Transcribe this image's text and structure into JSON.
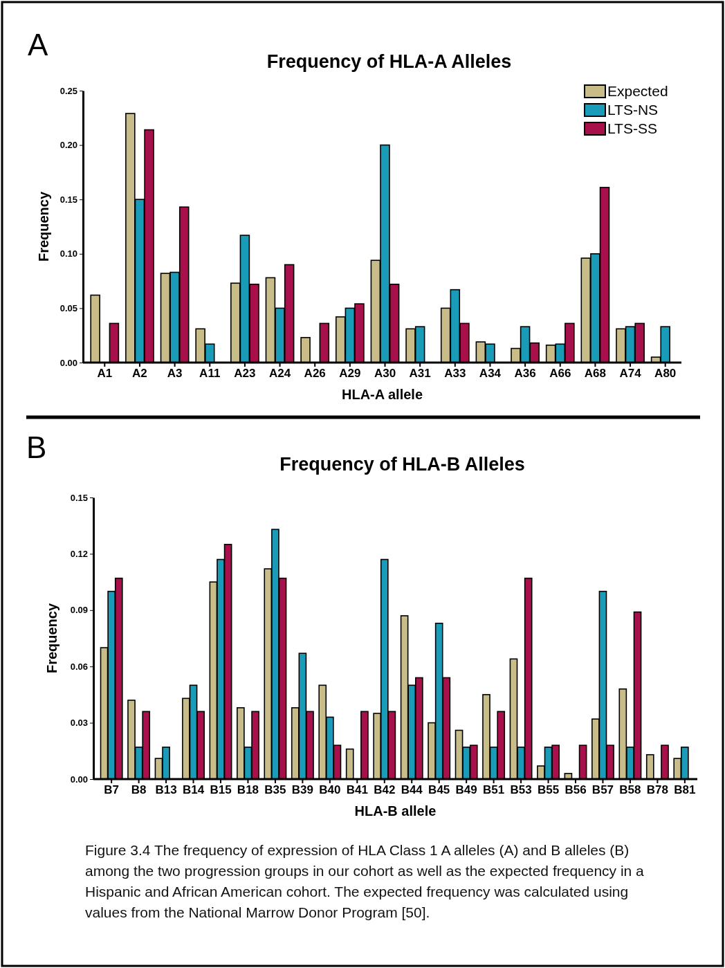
{
  "chart_data": [
    {
      "type": "bar",
      "title": "Frequency of HLA-A Alleles",
      "xlabel": "HLA-A allele",
      "ylabel": "Frequency",
      "categories": [
        "A1",
        "A2",
        "A3",
        "A11",
        "A23",
        "A24",
        "A26",
        "A29",
        "A30",
        "A31",
        "A33",
        "A34",
        "A36",
        "A66",
        "A68",
        "A74",
        "A80"
      ],
      "series": [
        {
          "name": "Expected",
          "color": "#c8bc88",
          "values": [
            0.062,
            0.229,
            0.082,
            0.031,
            0.073,
            0.078,
            0.023,
            0.042,
            0.094,
            0.031,
            0.05,
            0.019,
            0.013,
            0.016,
            0.096,
            0.031,
            0.005
          ]
        },
        {
          "name": "LTS-NS",
          "color": "#1a9cb8",
          "values": [
            0,
            0.15,
            0.083,
            0.017,
            0.117,
            0.05,
            0,
            0.05,
            0.2,
            0.033,
            0.067,
            0.017,
            0.033,
            0.017,
            0.1,
            0.033,
            0.033
          ]
        },
        {
          "name": "LTS-SS",
          "color": "#a8104c",
          "values": [
            0.036,
            0.214,
            0.143,
            0,
            0.072,
            0.09,
            0.036,
            0.054,
            0.072,
            0,
            0.036,
            0,
            0.018,
            0.036,
            0.161,
            0.036,
            0
          ]
        }
      ],
      "ylim": [
        0,
        0.25
      ],
      "yticks": [
        {
          "value": 0,
          "label": "0.00"
        },
        {
          "value": 0.05,
          "label": "0.05"
        },
        {
          "value": 0.1,
          "label": "0.10"
        },
        {
          "value": 0.15,
          "label": "0.15"
        },
        {
          "value": 0.2,
          "label": "0.20"
        },
        {
          "value": 0.25,
          "label": "0.25"
        }
      ],
      "legend": "top right",
      "grid": false,
      "annotations": [
        "A"
      ]
    },
    {
      "type": "bar",
      "title": "Frequency of HLA-B Alleles",
      "xlabel": "HLA-B allele",
      "ylabel": "Frequency",
      "categories": [
        "B7",
        "B8",
        "B13",
        "B14",
        "B15",
        "B18",
        "B35",
        "B39",
        "B40",
        "B41",
        "B42",
        "B44",
        "B45",
        "B49",
        "B51",
        "B53",
        "B55",
        "B56",
        "B57",
        "B58",
        "B78",
        "B81"
      ],
      "series": [
        {
          "color": "#c8bc88",
          "values": [
            0.07,
            0.042,
            0.011,
            0.043,
            0.105,
            0.038,
            0.112,
            0.038,
            0.05,
            0.016,
            0.035,
            0.087,
            0.03,
            0.026,
            0.045,
            0.064,
            0.007,
            0.003,
            0.032,
            0.048,
            0.013,
            0.011
          ]
        },
        {
          "color": "#1a9cb8",
          "values": [
            0.1,
            0.017,
            0.017,
            0.05,
            0.117,
            0.017,
            0.133,
            0.067,
            0.033,
            0,
            0.117,
            0.05,
            0.083,
            0.017,
            0.017,
            0.017,
            0.017,
            0,
            0.1,
            0.017,
            0,
            0.017
          ]
        },
        {
          "color": "#a8104c",
          "values": [
            0.107,
            0.036,
            0,
            0.036,
            0.125,
            0.036,
            0.107,
            0.036,
            0.018,
            0.036,
            0.036,
            0.054,
            0.054,
            0.018,
            0.036,
            0.107,
            0.018,
            0.018,
            0.018,
            0.089,
            0.018,
            0
          ]
        }
      ],
      "ylim": [
        0,
        0.15
      ],
      "yticks": [
        {
          "value": 0,
          "label": "0.00"
        },
        {
          "value": 0.03,
          "label": "0.03"
        },
        {
          "value": 0.06,
          "label": "0.06"
        },
        {
          "value": 0.09,
          "label": "0.09"
        },
        {
          "value": 0.12,
          "label": "0.12"
        },
        {
          "value": 0.15,
          "label": "0.15"
        }
      ],
      "legend": false,
      "grid": false,
      "annotations": [
        "B",
        "Figure 3.4 The frequency of expression of HLA Class 1 A alleles (A) and B alleles (B) among the two progression groups in our cohort as well as the expected frequency in a Hispanic and African American cohort. The expected frequency was calculated using values from the National Marrow Donor Program [50]."
      ]
    }
  ]
}
